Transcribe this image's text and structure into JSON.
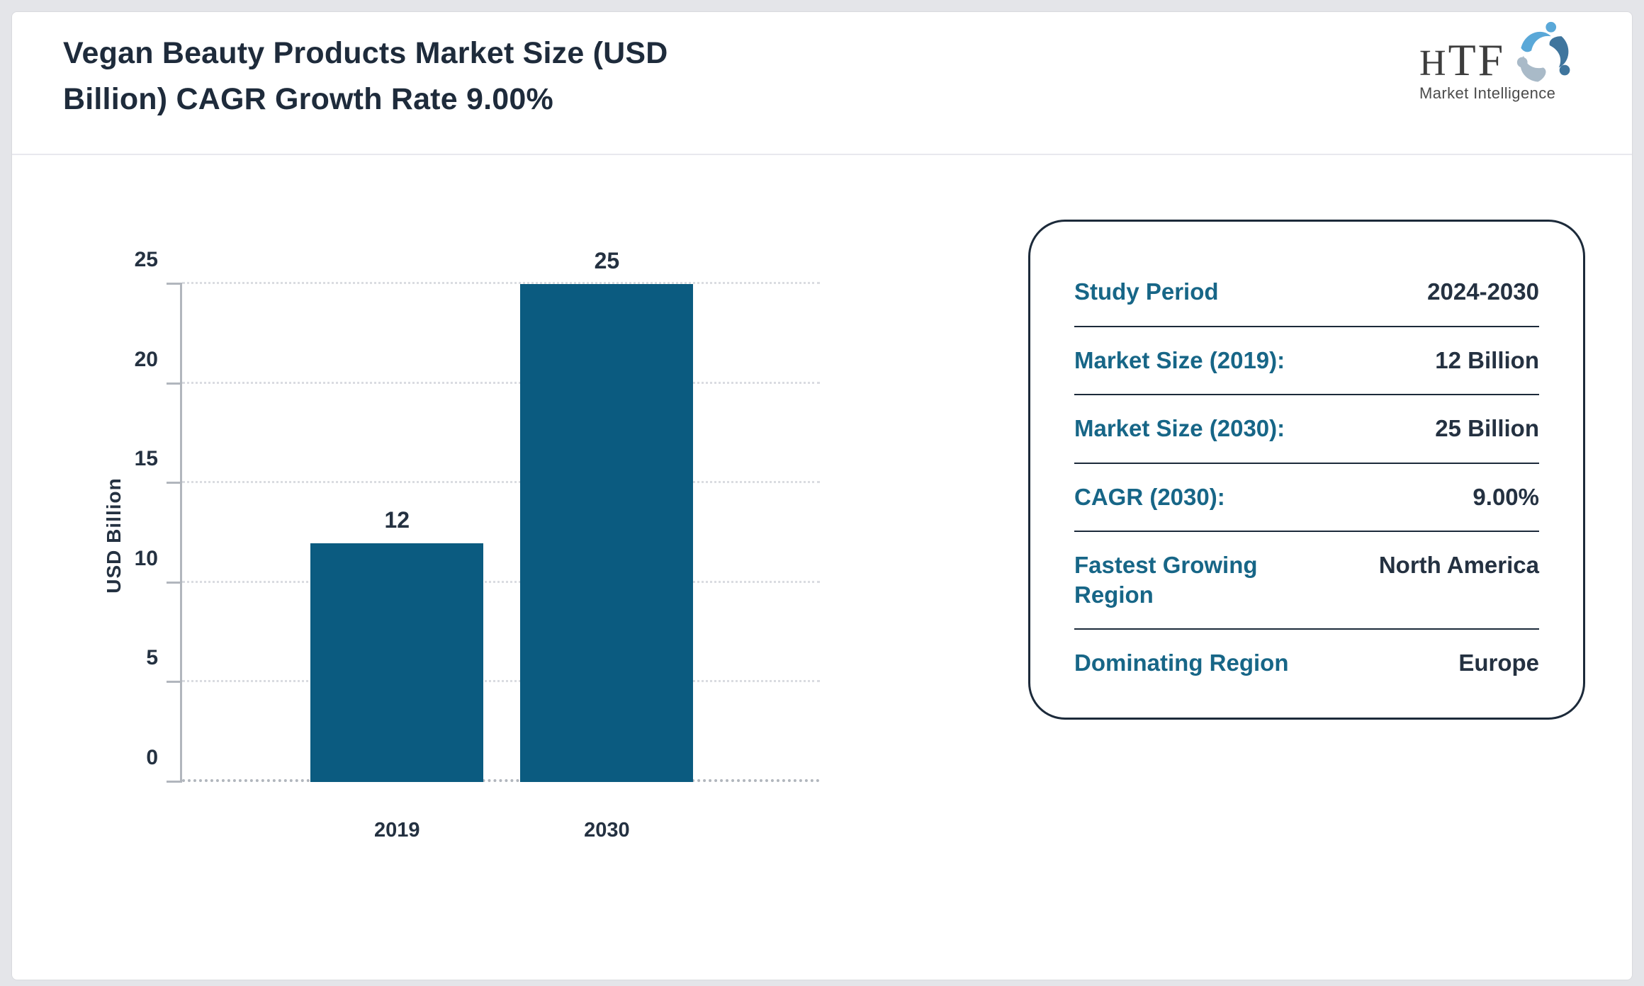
{
  "header": {
    "title_line1": "Vegan Beauty Products Market Size (USD",
    "title_line2": "Billion) CAGR Growth Rate 9.00%",
    "logo": {
      "abbr_first_letter": "H",
      "abbr_rest": "TF",
      "subtitle": "Market Intelligence"
    }
  },
  "chart_data": {
    "type": "bar",
    "title": "Vegan Beauty Products Market Size (USD Billion) CAGR Growth Rate 9.00%",
    "categories": [
      "2019",
      "2030"
    ],
    "values": [
      12,
      25
    ],
    "xlabel": "",
    "ylabel": "USD Billion",
    "ylim": [
      0,
      25
    ],
    "yticks": [
      0,
      5,
      10,
      15,
      20,
      25
    ],
    "grid": "horizontal-dotted",
    "legend": "none",
    "bar_color": "#0b5b80",
    "bar_centers_pct": [
      33.7,
      66.6
    ],
    "bar_width_pct": 27.1
  },
  "panel": {
    "rows": [
      {
        "label": "Study Period",
        "value": "2024-2030"
      },
      {
        "label": "Market Size (2019):",
        "value": "12 Billion"
      },
      {
        "label": "Market Size (2030):",
        "value": "25 Billion"
      },
      {
        "label": "CAGR (2030):",
        "value": "9.00%"
      },
      {
        "label": "Fastest Growing Region",
        "value": "North America"
      },
      {
        "label": "Dominating Region",
        "value": "Europe"
      }
    ]
  },
  "colors": {
    "bar": "#0b5b80",
    "label_teal": "#176687",
    "text_navy": "#243141",
    "panel_border": "#1c2a3a"
  }
}
